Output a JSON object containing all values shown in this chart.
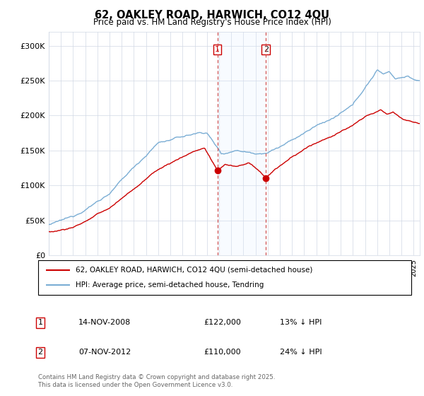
{
  "title": "62, OAKLEY ROAD, HARWICH, CO12 4QU",
  "subtitle": "Price paid vs. HM Land Registry's House Price Index (HPI)",
  "legend_label_red": "62, OAKLEY ROAD, HARWICH, CO12 4QU (semi-detached house)",
  "legend_label_blue": "HPI: Average price, semi-detached house, Tendring",
  "footer": "Contains HM Land Registry data © Crown copyright and database right 2025.\nThis data is licensed under the Open Government Licence v3.0.",
  "annotation1_date": "14-NOV-2008",
  "annotation1_price": "£122,000",
  "annotation1_hpi": "13% ↓ HPI",
  "annotation2_date": "07-NOV-2012",
  "annotation2_price": "£110,000",
  "annotation2_hpi": "24% ↓ HPI",
  "color_red": "#cc0000",
  "color_blue": "#7aadd4",
  "color_shading": "#ddeeff",
  "ylim": [
    0,
    320000
  ],
  "yticks": [
    0,
    50000,
    100000,
    150000,
    200000,
    250000,
    300000
  ],
  "ytick_labels": [
    "£0",
    "£50K",
    "£100K",
    "£150K",
    "£200K",
    "£250K",
    "£300K"
  ],
  "vline1_x": 2008.87,
  "vline2_x": 2012.85,
  "sale1_x": 2008.87,
  "sale1_y": 122000,
  "sale2_x": 2012.85,
  "sale2_y": 110000,
  "xmin": 1995,
  "xmax": 2025.5
}
